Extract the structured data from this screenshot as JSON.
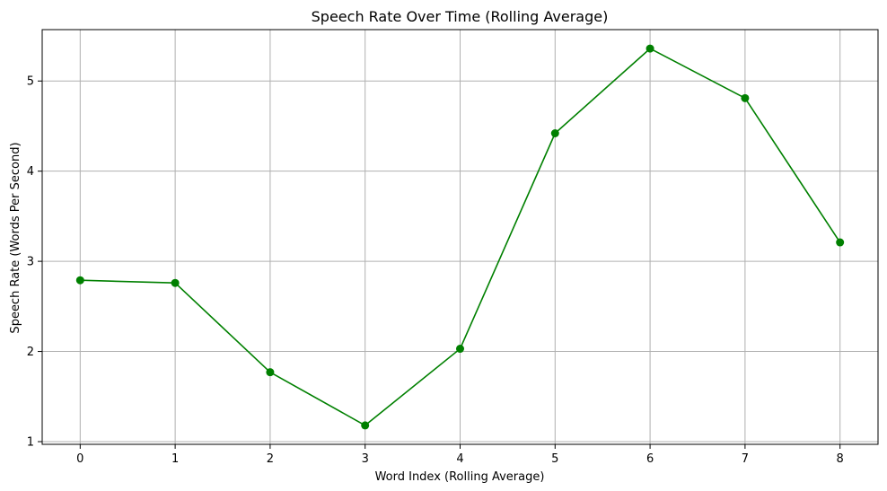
{
  "chart_data": {
    "type": "line",
    "title": "Speech Rate Over Time (Rolling Average)",
    "xlabel": "Word Index (Rolling Average)",
    "ylabel": "Speech Rate (Words Per Second)",
    "x": [
      0,
      1,
      2,
      3,
      4,
      5,
      6,
      7,
      8
    ],
    "series": [
      {
        "values": [
          2.79,
          2.76,
          1.77,
          1.18,
          2.03,
          4.42,
          5.36,
          4.81,
          3.21
        ],
        "color": "#008000",
        "marker": "circle"
      }
    ],
    "xlim": [
      -0.4,
      8.4
    ],
    "ylim": [
      0.97,
      5.57
    ],
    "x_ticks": [
      0,
      1,
      2,
      3,
      4,
      5,
      6,
      7,
      8
    ],
    "y_ticks": [
      1,
      2,
      3,
      4,
      5
    ],
    "grid": true,
    "grid_color": "#b0b0b0",
    "axis_color": "#000000"
  }
}
